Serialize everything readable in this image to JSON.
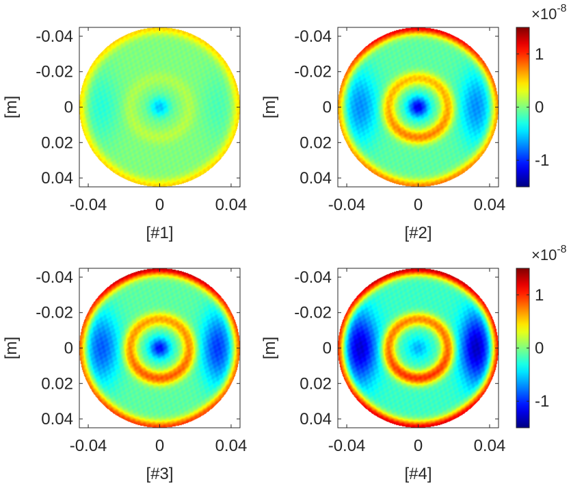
{
  "chart_data": [
    {
      "type": "heatmap",
      "panel": "#1",
      "xlabel": "[#1]",
      "ylabel": "[m]",
      "xlim": [
        -0.045,
        0.045
      ],
      "ylim": [
        -0.045,
        0.045
      ],
      "y_direction": "reversed",
      "x_ticks": [
        -0.04,
        0,
        0.04
      ],
      "y_ticks": [
        -0.04,
        -0.02,
        0,
        0.02,
        0.04
      ],
      "aperture_radius_m": 0.045,
      "features": {
        "center": -0.55,
        "ring": 0.15,
        "edge": 0.5,
        "left_lobe": -0.25,
        "right_lobe": -0.15,
        "top_edge": 0.5,
        "background": 0.0
      }
    },
    {
      "type": "heatmap",
      "panel": "#2",
      "xlabel": "[#2]",
      "ylabel": "[m]",
      "xlim": [
        -0.045,
        0.045
      ],
      "ylim": [
        -0.045,
        0.045
      ],
      "y_direction": "reversed",
      "x_ticks": [
        -0.04,
        0,
        0.04
      ],
      "y_ticks": [
        -0.04,
        -0.02,
        0,
        0.02,
        0.04
      ],
      "aperture_radius_m": 0.045,
      "features": {
        "center": -1.1,
        "ring": 0.75,
        "edge": 0.85,
        "left_lobe": -0.6,
        "right_lobe": -0.6,
        "top_edge": 1.3,
        "background": -0.1
      }
    },
    {
      "type": "heatmap",
      "panel": "#3",
      "xlabel": "[#3]",
      "ylabel": "[m]",
      "xlim": [
        -0.045,
        0.045
      ],
      "ylim": [
        -0.045,
        0.045
      ],
      "y_direction": "reversed",
      "x_ticks": [
        -0.04,
        0,
        0.04
      ],
      "y_ticks": [
        -0.04,
        -0.02,
        0,
        0.02,
        0.04
      ],
      "aperture_radius_m": 0.045,
      "features": {
        "center": -1.0,
        "ring": 0.85,
        "edge": 1.05,
        "left_lobe": -0.75,
        "right_lobe": -0.85,
        "top_edge": 1.4,
        "background": -0.1
      }
    },
    {
      "type": "heatmap",
      "panel": "#4",
      "xlabel": "[#4]",
      "ylabel": "[m]",
      "xlim": [
        -0.045,
        0.045
      ],
      "ylim": [
        -0.045,
        0.045
      ],
      "y_direction": "reversed",
      "x_ticks": [
        -0.04,
        0,
        0.04
      ],
      "y_ticks": [
        -0.04,
        -0.02,
        0,
        0.02,
        0.04
      ],
      "aperture_radius_m": 0.045,
      "features": {
        "center": -0.4,
        "ring": 1.05,
        "edge": 1.4,
        "left_lobe": -1.05,
        "right_lobe": -1.1,
        "top_edge": 1.5,
        "background": -0.2
      }
    }
  ],
  "colorbars": [
    {
      "label": "×10",
      "exponent": "-8",
      "range": [
        -1.5,
        1.5
      ],
      "ticks": [
        1,
        0,
        -1
      ]
    },
    {
      "label": "×10",
      "exponent": "-8",
      "range": [
        -1.5,
        1.5
      ],
      "ticks": [
        1,
        0,
        -1
      ]
    }
  ],
  "colors": {
    "axis": "#262626",
    "background": "#ffffff",
    "colormap": "jet"
  }
}
